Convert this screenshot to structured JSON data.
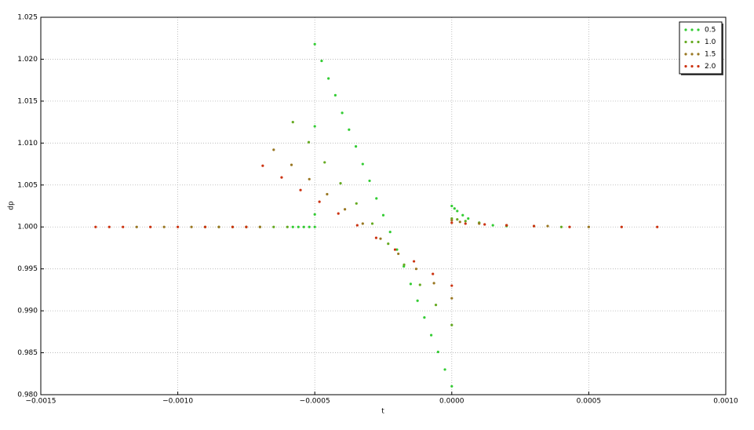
{
  "chart_data": {
    "type": "scatter",
    "x_label": "t",
    "y_label": "dp",
    "xlim": [
      -0.0015,
      0.001
    ],
    "xticks": [
      {
        "value": -0.0015,
        "label": "−0.0015"
      },
      {
        "value": -0.001,
        "label": "−0.0010"
      },
      {
        "value": -0.0005,
        "label": "−0.0005"
      },
      {
        "value": 0,
        "label": "0.0000"
      },
      {
        "value": 0.0005,
        "label": "0.0005"
      },
      {
        "value": 0.001,
        "label": "0.0010"
      }
    ],
    "ylim": [
      0.98,
      1.025
    ],
    "yticks": [
      {
        "value": 0.98,
        "label": "0.980"
      },
      0.985,
      {
        "value": 0.99,
        "label": "0.990"
      },
      0.995,
      {
        "value": 1,
        "label": "1.000"
      },
      1.005,
      {
        "value": 1.01,
        "label": "1.010"
      },
      1.015,
      {
        "value": 1.02,
        "label": "1.020"
      },
      1.025
    ],
    "grid": true,
    "legend": "upper right",
    "series": [
      {
        "name": "0.5",
        "color": "#33cc33",
        "x": [
          -0.00058,
          -0.00056,
          -0.00054,
          -0.00052,
          -0.0005,
          -0.0005,
          -0.0005,
          -0.0005,
          -0.000475,
          -0.00045,
          -0.000425,
          -0.0004,
          -0.000375,
          -0.00035,
          -0.000325,
          -0.0003,
          -0.000275,
          -0.00025,
          -0.000225,
          -0.0002,
          -0.000175,
          -0.00015,
          -0.000125,
          -0.0001,
          -7.5e-05,
          -5e-05,
          -2.5e-05,
          0,
          0,
          1e-05,
          2e-05,
          4e-05,
          6e-05,
          0.0001,
          0.00015,
          0.0002
        ],
        "values": [
          1.0,
          1.0,
          1.0,
          1.0,
          1.0,
          1.0015,
          1.012,
          1.0218,
          1.0198,
          1.0177,
          1.0157,
          1.0136,
          1.0116,
          1.0096,
          1.0075,
          1.0055,
          1.0034,
          1.0014,
          0.9994,
          0.9973,
          0.9953,
          0.9932,
          0.9912,
          0.9892,
          0.9871,
          0.9851,
          0.983,
          0.981,
          1.0025,
          1.0022,
          1.0019,
          1.0014,
          1.001,
          1.0005,
          1.0002,
          1.0001
        ]
      },
      {
        "name": "1.0",
        "color": "#66aa22",
        "x": [
          -0.0009,
          -0.00085,
          -0.0008,
          -0.00075,
          -0.0007,
          -0.00065,
          -0.0006,
          -0.00058,
          -0.000522,
          -0.000464,
          -0.000406,
          -0.000348,
          -0.00029,
          -0.000232,
          -0.000174,
          -0.000116,
          -5.8e-05,
          0,
          0,
          2e-05,
          5e-05,
          0.0001,
          0.0002,
          0.0003,
          0.0004
        ],
        "values": [
          1.0,
          1.0,
          1.0,
          1.0,
          1.0,
          1.0,
          1.0,
          1.0125,
          1.0101,
          1.0077,
          1.0052,
          1.0028,
          1.0004,
          0.998,
          0.9955,
          0.9931,
          0.9907,
          0.9883,
          1.001,
          1.0009,
          1.0007,
          1.0005,
          1.0002,
          1.0001,
          1.0
        ]
      },
      {
        "name": "1.5",
        "color": "#997722",
        "x": [
          -0.00115,
          -0.00105,
          -0.00095,
          -0.00085,
          -0.00075,
          -0.0007,
          -0.00065,
          -0.000585,
          -0.00052,
          -0.000455,
          -0.00039,
          -0.000325,
          -0.00026,
          -0.000195,
          -0.00013,
          -6.5e-05,
          0,
          0,
          3e-05,
          0.0001,
          0.0002,
          0.00035,
          0.0005
        ],
        "values": [
          1.0,
          1.0,
          1.0,
          1.0,
          1.0,
          1.0,
          1.0092,
          1.0074,
          1.0057,
          1.0039,
          1.0021,
          1.0004,
          0.9986,
          0.9968,
          0.995,
          0.9933,
          0.9915,
          1.0008,
          1.0006,
          1.0004,
          1.0002,
          1.0001,
          1.0
        ]
      },
      {
        "name": "2.0",
        "color": "#cc3311",
        "x": [
          -0.0013,
          -0.00125,
          -0.0012,
          -0.0011,
          -0.001,
          -0.0009,
          -0.0008,
          -0.00075,
          -0.00069,
          -0.000621,
          -0.000552,
          -0.000483,
          -0.000414,
          -0.000345,
          -0.000276,
          -0.000207,
          -0.000138,
          -6.9e-05,
          0,
          0,
          5e-05,
          0.00012,
          0.0002,
          0.0003,
          0.00043,
          0.00062,
          0.00075
        ],
        "values": [
          1.0,
          1.0,
          1.0,
          1.0,
          1.0,
          1.0,
          1.0,
          1.0,
          1.0073,
          1.0059,
          1.0044,
          1.003,
          1.0016,
          1.0002,
          0.9987,
          0.9973,
          0.9959,
          0.9944,
          0.993,
          1.0005,
          1.0004,
          1.0003,
          1.0002,
          1.0001,
          1.0,
          1.0,
          1.0
        ]
      }
    ]
  }
}
